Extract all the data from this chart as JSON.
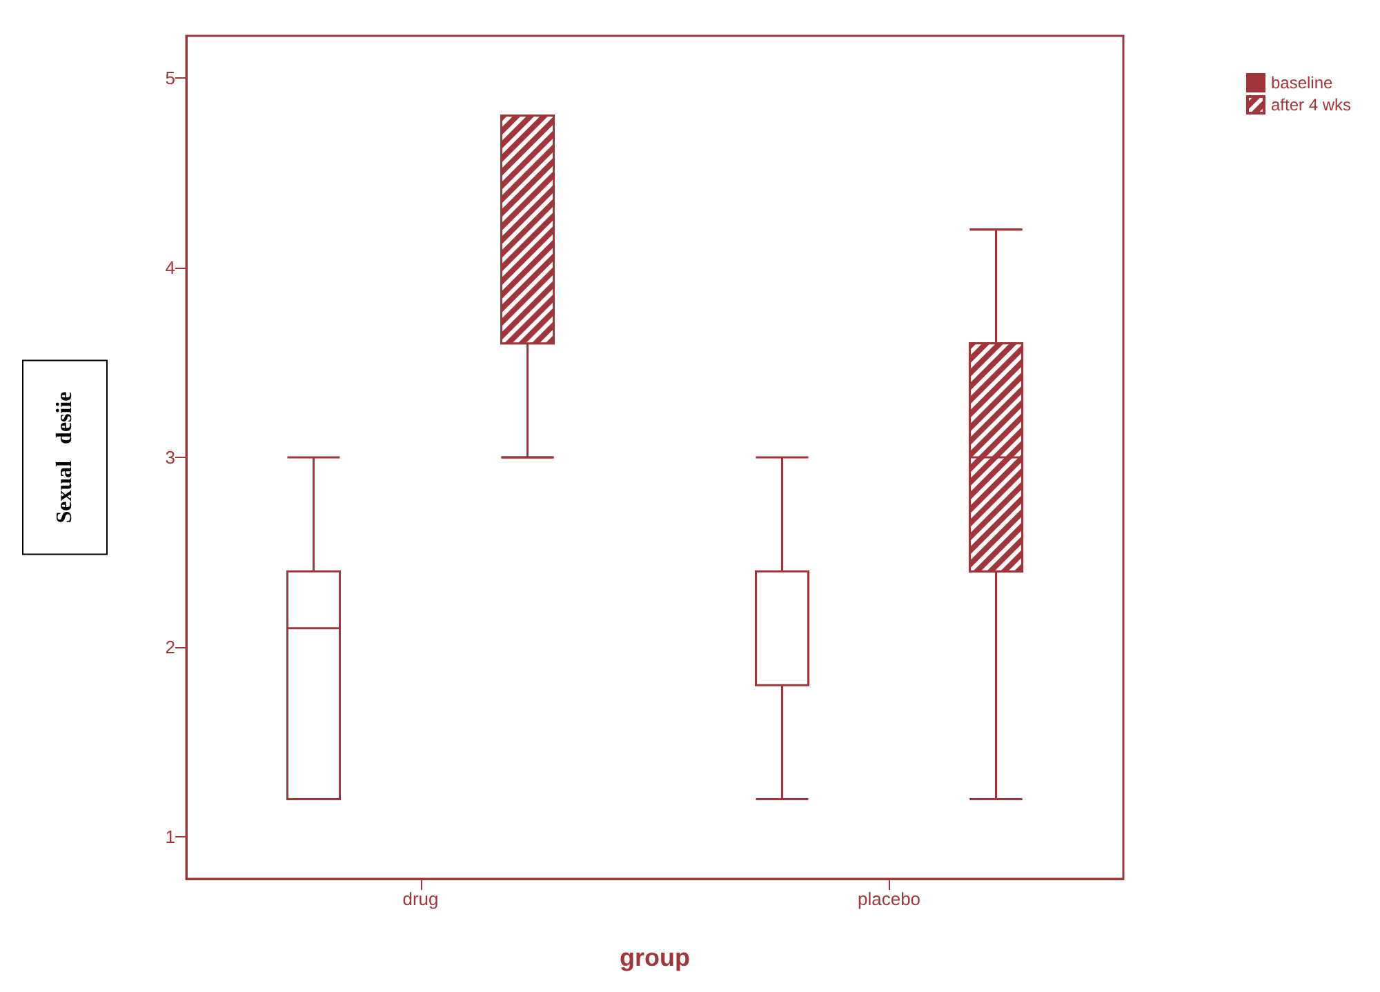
{
  "chart_data": {
    "type": "box",
    "xlabel": "group",
    "ylabel": "Sexual   desiie",
    "categories": [
      "drug",
      "placebo"
    ],
    "ylim": [
      0.78,
      5.22
    ],
    "yticks": [
      1,
      2,
      3,
      4,
      5
    ],
    "legend": "top right",
    "grid": false,
    "series": [
      {
        "name": "baseline",
        "color": "#a0353a",
        "boxes": [
          {
            "low": 1.2,
            "q1": 1.2,
            "median": 2.1,
            "q3": 2.4,
            "high": 3.0
          },
          {
            "low": 1.2,
            "q1": 1.8,
            "median": 2.4,
            "q3": 2.4,
            "high": 3.0
          }
        ]
      },
      {
        "name": "after 4 wks",
        "color": "#a0353a",
        "boxes": [
          {
            "low": 3.0,
            "q1": 3.6,
            "median": 4.8,
            "q3": 4.8,
            "high": 4.8
          },
          {
            "low": 1.2,
            "q1": 2.4,
            "median": 3.0,
            "q3": 3.6,
            "high": 4.2
          }
        ]
      }
    ]
  }
}
